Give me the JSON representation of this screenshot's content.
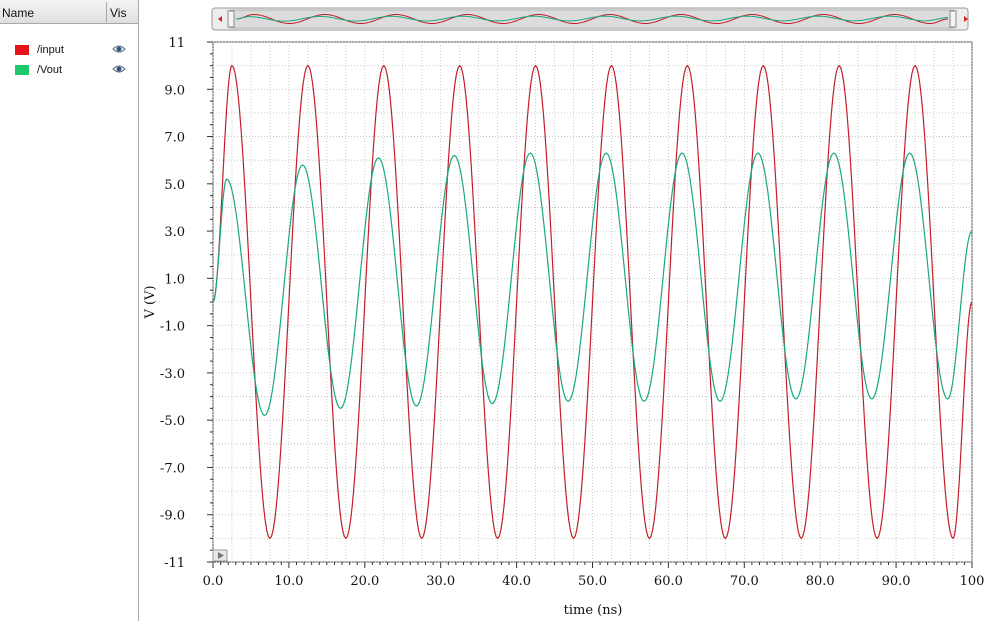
{
  "browser": {
    "header_name": "Name",
    "header_vis": "Vis",
    "signals": [
      {
        "label": "/input",
        "color": "#e3141b"
      },
      {
        "label": "/Vout",
        "color": "#1ec86a"
      }
    ]
  },
  "chart_data": {
    "type": "line",
    "xlabel": "time (ns)",
    "ylabel": "V (V)",
    "xlim": [
      0,
      100
    ],
    "ylim": [
      -11,
      11
    ],
    "x_ticks": [
      "0.0",
      "10.0",
      "20.0",
      "30.0",
      "40.0",
      "50.0",
      "60.0",
      "70.0",
      "80.0",
      "90.0",
      "100"
    ],
    "y_ticks": [
      "11",
      "9.0",
      "7.0",
      "5.0",
      "3.0",
      "1.0",
      "-1.0",
      "-3.0",
      "-5.0",
      "-7.0",
      "-9.0",
      "-11"
    ],
    "grid": true,
    "series": [
      {
        "name": "/input",
        "color": "#c41e2a",
        "x": [
          0,
          2.5,
          7.5,
          12.5,
          17.5,
          22.5,
          27.5,
          32.5,
          37.5,
          42.5,
          47.5,
          52.5,
          57.5,
          62.5,
          67.5,
          72.5,
          77.5,
          82.5,
          87.5,
          92.5,
          97.5,
          100
        ],
        "y": [
          0,
          10,
          -10,
          10,
          -10,
          10,
          -10,
          10,
          -10,
          10,
          -10,
          10,
          -10,
          10,
          -10,
          10,
          -10,
          10,
          -10,
          10,
          -10,
          0
        ]
      },
      {
        "name": "/Vout",
        "color": "#1aa880",
        "x": [
          0,
          1.8,
          6.8,
          11.8,
          16.8,
          21.8,
          26.8,
          31.8,
          36.8,
          41.8,
          46.8,
          51.8,
          56.8,
          61.8,
          66.8,
          71.8,
          76.8,
          81.8,
          86.8,
          91.8,
          96.8,
          100
        ],
        "y": [
          0,
          5.2,
          -4.8,
          5.8,
          -4.5,
          6.1,
          -4.4,
          6.2,
          -4.3,
          6.3,
          -4.2,
          6.3,
          -4.2,
          6.3,
          -4.2,
          6.3,
          -4.1,
          6.3,
          -4.1,
          6.3,
          -4.1,
          3.0
        ]
      }
    ]
  }
}
